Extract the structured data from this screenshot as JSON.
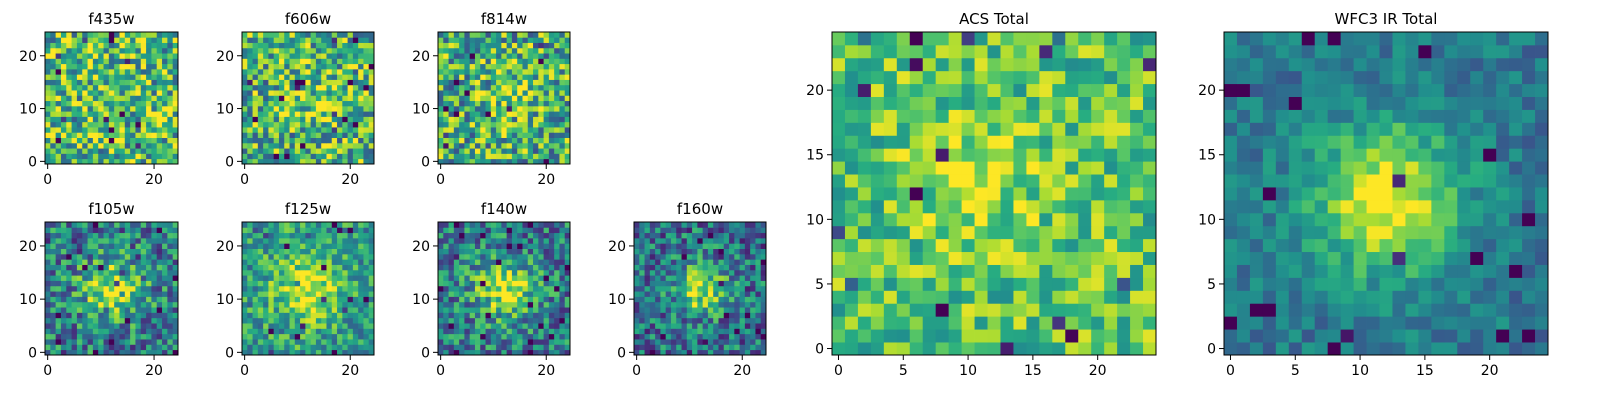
{
  "colors": {
    "viridis": [
      "#440154",
      "#472c7a",
      "#3b518b",
      "#2c718e",
      "#21908d",
      "#27ad81",
      "#5cc863",
      "#aadc32",
      "#fde725"
    ],
    "frame": "#000000",
    "background": "#ffffff"
  },
  "chart_data": [
    {
      "type": "heatmap",
      "id": "f435w",
      "title": "f435w",
      "grid_size": 25,
      "extent": [
        0,
        24
      ],
      "xticks": [
        0,
        20
      ],
      "xtick_labels": [
        "0",
        "20"
      ],
      "yticks": [
        0,
        10,
        20
      ],
      "ytick_labels": [
        "0",
        "10",
        "20"
      ],
      "seed": 11,
      "center": [
        12,
        12
      ],
      "peak": 0.0,
      "width": 4.0,
      "noise": 0.38,
      "base": 0.68
    },
    {
      "type": "heatmap",
      "id": "f606w",
      "title": "f606w",
      "grid_size": 25,
      "extent": [
        0,
        24
      ],
      "xticks": [
        0,
        20
      ],
      "xtick_labels": [
        "0",
        "20"
      ],
      "yticks": [
        0,
        10,
        20
      ],
      "ytick_labels": [
        "0",
        "10",
        "20"
      ],
      "seed": 23,
      "center": [
        12,
        12
      ],
      "peak": 0.12,
      "width": 4.0,
      "noise": 0.38,
      "base": 0.66
    },
    {
      "type": "heatmap",
      "id": "f814w",
      "title": "f814w",
      "grid_size": 25,
      "extent": [
        0,
        24
      ],
      "xticks": [
        0,
        20
      ],
      "xtick_labels": [
        "0",
        "20"
      ],
      "yticks": [
        0,
        10,
        20
      ],
      "ytick_labels": [
        "0",
        "10",
        "20"
      ],
      "seed": 37,
      "center": [
        12,
        13
      ],
      "peak": 0.22,
      "width": 3.5,
      "noise": 0.38,
      "base": 0.62
    },
    {
      "type": "heatmap",
      "id": "f105w",
      "title": "f105w",
      "grid_size": 25,
      "extent": [
        0,
        24
      ],
      "xticks": [
        0,
        20
      ],
      "xtick_labels": [
        "0",
        "20"
      ],
      "yticks": [
        0,
        10,
        20
      ],
      "ytick_labels": [
        "0",
        "10",
        "20"
      ],
      "seed": 41,
      "center": [
        12,
        12
      ],
      "peak": 0.45,
      "width": 4.0,
      "noise": 0.32,
      "base": 0.42
    },
    {
      "type": "heatmap",
      "id": "f125w",
      "title": "f125w",
      "grid_size": 25,
      "extent": [
        0,
        24
      ],
      "xticks": [
        0,
        20
      ],
      "xtick_labels": [
        "0",
        "20"
      ],
      "yticks": [
        0,
        10,
        20
      ],
      "ytick_labels": [
        "0",
        "10",
        "20"
      ],
      "seed": 53,
      "center": [
        12,
        12
      ],
      "peak": 0.42,
      "width": 4.5,
      "noise": 0.26,
      "base": 0.55
    },
    {
      "type": "heatmap",
      "id": "f140w",
      "title": "f140w",
      "grid_size": 25,
      "extent": [
        0,
        24
      ],
      "xticks": [
        0,
        20
      ],
      "xtick_labels": [
        "0",
        "20"
      ],
      "yticks": [
        0,
        10,
        20
      ],
      "ytick_labels": [
        "0",
        "10",
        "20"
      ],
      "seed": 67,
      "center": [
        12,
        12
      ],
      "peak": 0.5,
      "width": 4.0,
      "noise": 0.3,
      "base": 0.42
    },
    {
      "type": "heatmap",
      "id": "f160w",
      "title": "f160w",
      "grid_size": 25,
      "extent": [
        0,
        24
      ],
      "xticks": [
        0,
        20
      ],
      "xtick_labels": [
        "0",
        "20"
      ],
      "yticks": [
        0,
        10,
        20
      ],
      "ytick_labels": [
        "0",
        "10",
        "20"
      ],
      "seed": 79,
      "center": [
        12,
        12
      ],
      "peak": 0.55,
      "width": 3.2,
      "noise": 0.3,
      "base": 0.38
    },
    {
      "type": "heatmap",
      "id": "acs-total",
      "title": "ACS Total",
      "grid_size": 25,
      "extent": [
        0,
        24
      ],
      "xticks": [
        0,
        5,
        10,
        15,
        20
      ],
      "xtick_labels": [
        "0",
        "5",
        "10",
        "15",
        "20"
      ],
      "yticks": [
        0,
        5,
        10,
        15,
        20
      ],
      "ytick_labels": [
        "0",
        "5",
        "10",
        "15",
        "20"
      ],
      "seed": 97,
      "center": [
        11,
        13
      ],
      "peak": 0.18,
      "width": 3.5,
      "noise": 0.24,
      "base": 0.72
    },
    {
      "type": "heatmap",
      "id": "wfc3-ir-total",
      "title": "WFC3 IR Total",
      "grid_size": 25,
      "extent": [
        0,
        24
      ],
      "xticks": [
        0,
        5,
        10,
        15,
        20
      ],
      "xtick_labels": [
        "0",
        "5",
        "10",
        "15",
        "20"
      ],
      "yticks": [
        0,
        5,
        10,
        15,
        20
      ],
      "ytick_labels": [
        "0",
        "5",
        "10",
        "15",
        "20"
      ],
      "seed": 113,
      "center": [
        12,
        11.5
      ],
      "peak": 0.6,
      "width": 4.0,
      "noise": 0.14,
      "base": 0.4
    }
  ]
}
